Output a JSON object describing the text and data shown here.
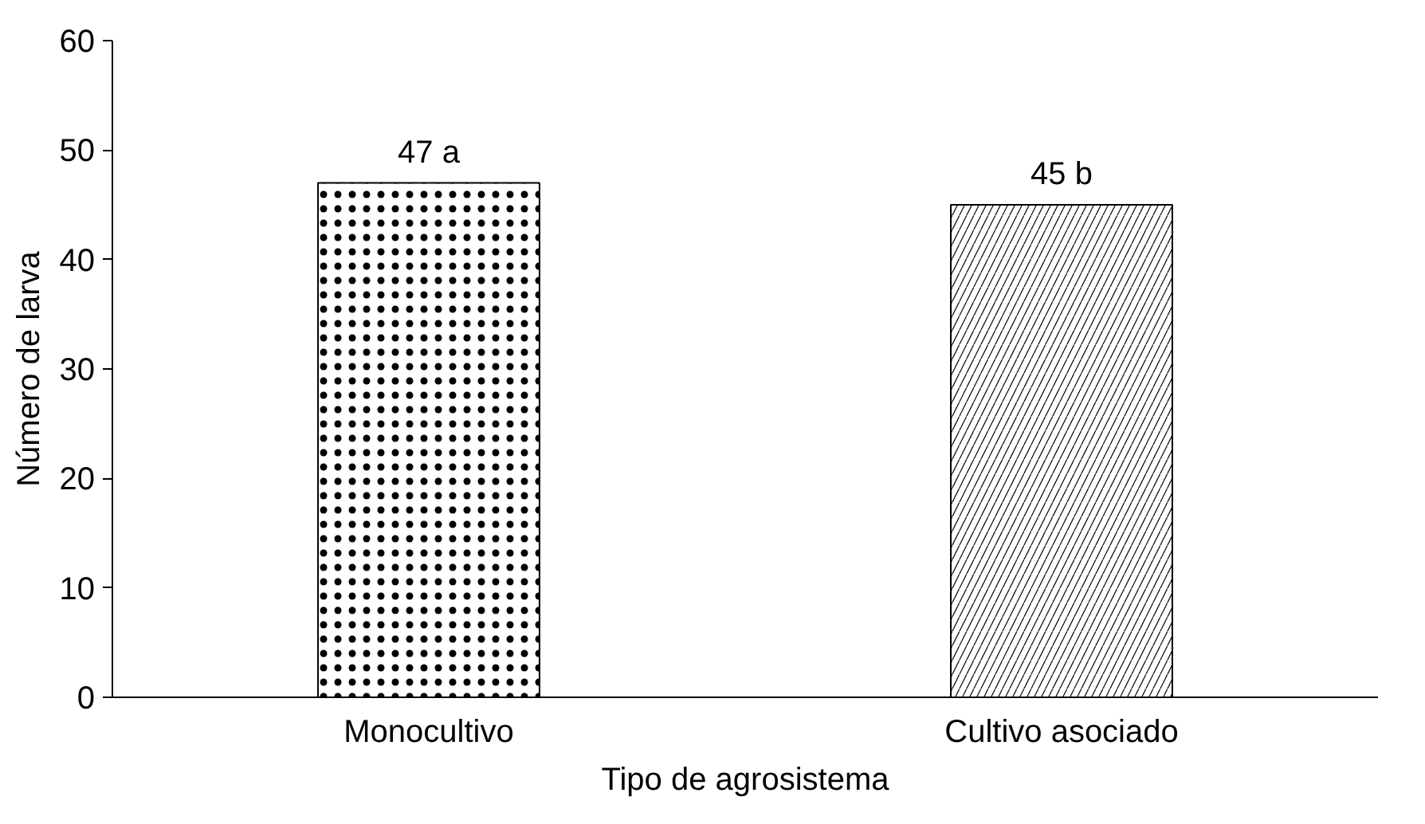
{
  "chart_data": {
    "type": "bar",
    "xlabel": "Tipo de agrosistema",
    "ylabel": "Número de larva",
    "categories": [
      "Monocultivo",
      "Cultivo asociado"
    ],
    "values": [
      47,
      45
    ],
    "colors": [
      "#ffffff",
      "#ffffff"
    ],
    "value_labels": [
      "47 a",
      "45 b"
    ],
    "ylim": [
      0,
      60
    ],
    "yticks": [
      0,
      10,
      20,
      30,
      40,
      50,
      60
    ],
    "grid": false
  }
}
